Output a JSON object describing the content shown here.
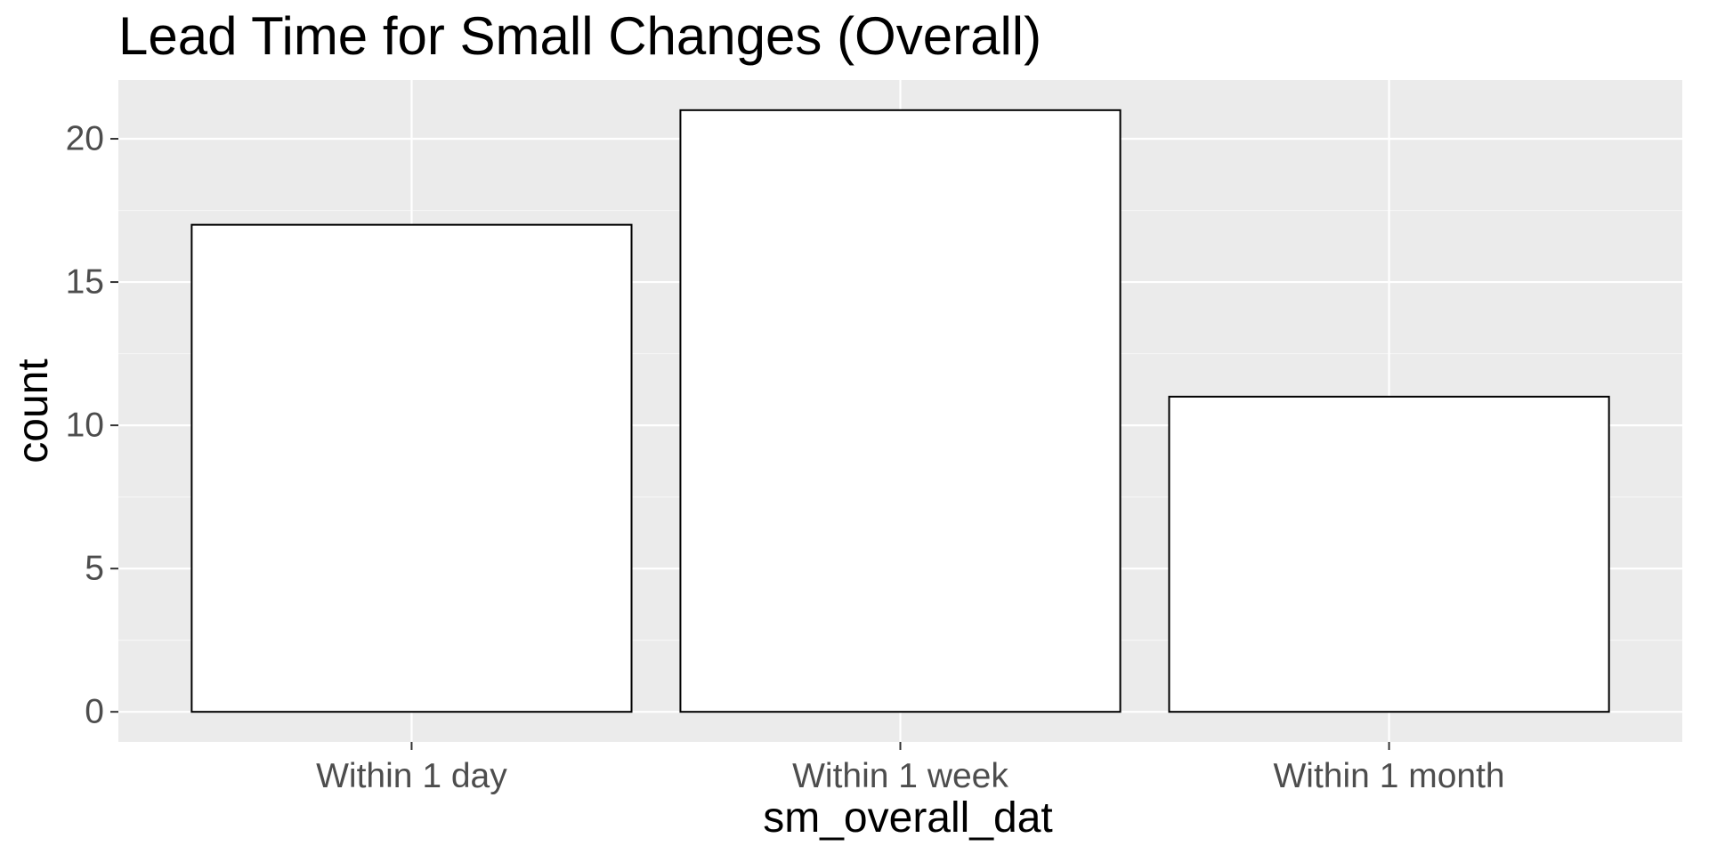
{
  "chart_data": {
    "type": "bar",
    "title": "Lead Time for Small Changes (Overall)",
    "xlabel": "sm_overall_dat",
    "ylabel": "count",
    "categories": [
      "Within 1 day",
      "Within 1 week",
      "Within 1 month"
    ],
    "values": [
      17,
      21,
      11
    ],
    "ylim": [
      -1.05,
      22.05
    ],
    "yticks": [
      0,
      5,
      10,
      15,
      20
    ],
    "ytick_labels": [
      "0",
      "5",
      "10",
      "15",
      "20"
    ],
    "grid": true,
    "legend": "none",
    "colors": {
      "panel_background": "#ebebeb",
      "grid_major": "#ffffff",
      "grid_minor": "#f5f5f5",
      "bar_fill": "#ffffff",
      "bar_outline": "#000000",
      "tick_label": "#4d4d4d",
      "title": "#000000"
    }
  }
}
